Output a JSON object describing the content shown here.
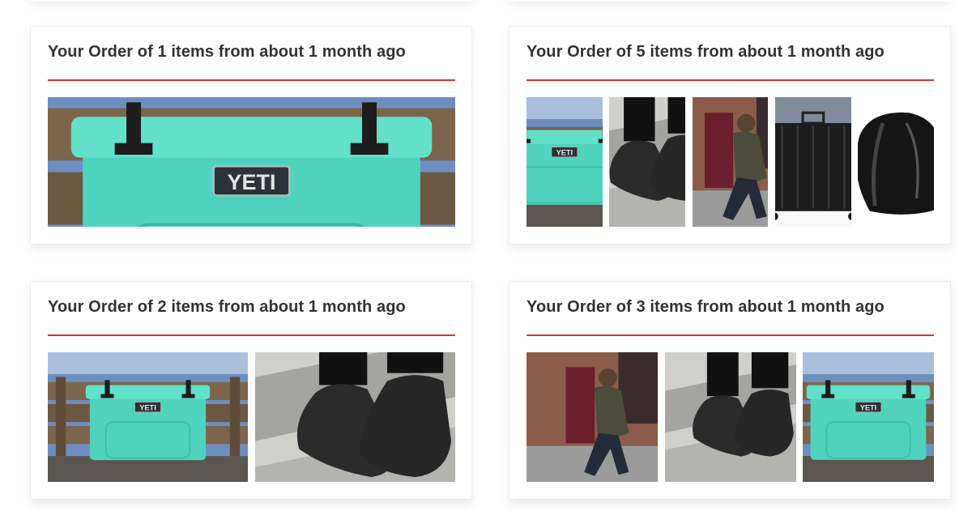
{
  "orders": [
    {
      "title": "Your Order of 1 items from about 1 month ago",
      "cooler_label": "YETI"
    },
    {
      "title": "Your Order of 5 items from about 1 month ago",
      "cooler_label": "YETI"
    },
    {
      "title": "Your Order of 2 items from about 1 month ago",
      "cooler_label": "YETI"
    },
    {
      "title": "Your Order of 3 items from about 1 month ago",
      "cooler_label": "YETI"
    }
  ]
}
